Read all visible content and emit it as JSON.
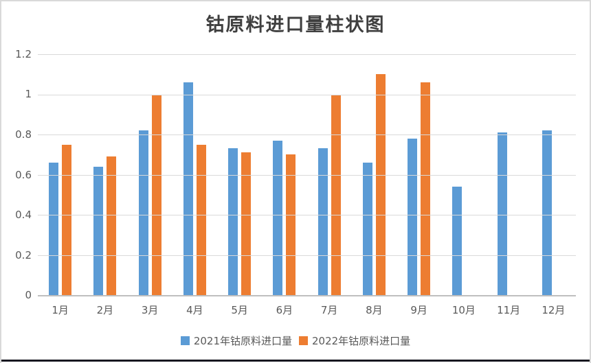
{
  "chart": {
    "title": "钴原料进口量柱状图"
  },
  "chart_data": {
    "type": "bar",
    "title": "钴原料进口量柱状图",
    "categories": [
      "1月",
      "2月",
      "3月",
      "4月",
      "5月",
      "6月",
      "7月",
      "8月",
      "9月",
      "10月",
      "11月",
      "12月"
    ],
    "series": [
      {
        "name": "2021年钴原料进口量",
        "color": "#5B9BD5",
        "values": [
          0.66,
          0.64,
          0.82,
          1.06,
          0.73,
          0.77,
          0.73,
          0.66,
          0.78,
          0.54,
          0.81,
          0.82
        ]
      },
      {
        "name": "2022年钴原料进口量",
        "color": "#ED7D31",
        "values": [
          0.75,
          0.69,
          1.0,
          0.75,
          0.71,
          0.7,
          1.0,
          1.1,
          1.06,
          null,
          null,
          null
        ]
      }
    ],
    "xlabel": "",
    "ylabel": "",
    "ylim": [
      0,
      1.2
    ],
    "yticks": [
      0,
      0.2,
      0.4,
      0.6,
      0.8,
      1,
      1.2
    ],
    "ytick_labels": [
      "0",
      "0.2",
      "0.4",
      "0.6",
      "0.8",
      "1",
      "1.2"
    ],
    "grid": true,
    "legend_position": "bottom",
    "colors": {
      "gridline": "#d9d9d9",
      "axis_line": "#bfbfbf",
      "tick_text": "#595959",
      "title_text": "#3f3f3f",
      "frame_border": "#d9d9d9",
      "bottom_bar": "#16161f"
    }
  }
}
